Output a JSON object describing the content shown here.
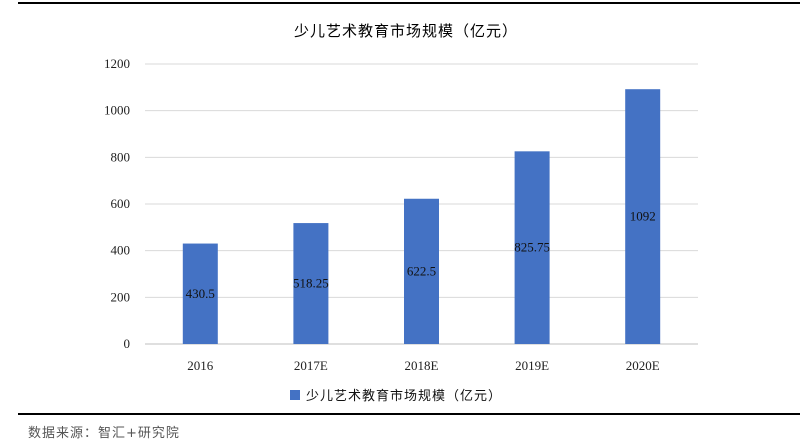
{
  "chart_data": {
    "type": "bar",
    "title": "少儿艺术教育市场规模（亿元）",
    "categories": [
      "2016",
      "2017E",
      "2018E",
      "2019E",
      "2020E"
    ],
    "series": [
      {
        "name": "少儿艺术教育市场规模（亿元）",
        "values": [
          430.5,
          518.25,
          622.5,
          825.75,
          1092
        ],
        "color": "#4472C4"
      }
    ],
    "data_labels": [
      "430.5",
      "518.25",
      "622.5",
      "825.75",
      "1092"
    ],
    "ylim": [
      0,
      1200
    ],
    "yticks": [
      0,
      200,
      400,
      600,
      800,
      1000,
      1200
    ],
    "grid": true,
    "legend": "bottom"
  },
  "source_text": "数据来源：智汇+研究院"
}
